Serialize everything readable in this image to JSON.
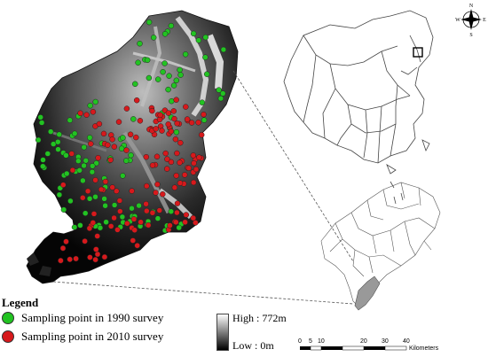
{
  "legend": {
    "title": "Legend",
    "items": [
      {
        "label": "Sampling point in 1990 survey",
        "color": "#22c322"
      },
      {
        "label": "Sampling point in 2010 survey",
        "color": "#d7191c"
      }
    ]
  },
  "elevation": {
    "high_label": "High : 772m",
    "low_label": "Low : 0m"
  },
  "scale_bar": {
    "ticks": [
      "0",
      "5",
      "10",
      "20",
      "30",
      "40"
    ],
    "unit": "Kilometers"
  },
  "compass": {
    "north": "N",
    "south": "S",
    "east": "E",
    "west": "W"
  },
  "colors": {
    "dem_high": "#ffffff",
    "dem_low": "#000000",
    "green": "#22c322",
    "red": "#d7191c",
    "highlight": "#999999"
  }
}
